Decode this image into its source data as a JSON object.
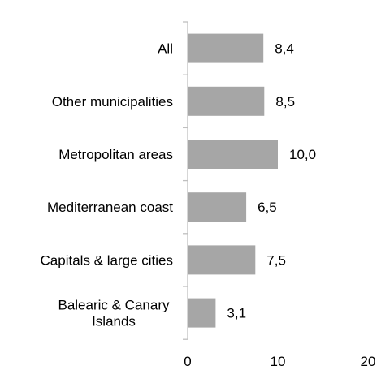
{
  "chart_data": {
    "type": "bar",
    "orientation": "horizontal",
    "categories": [
      [
        "All"
      ],
      [
        "Other municipalities"
      ],
      [
        "Metropolitan areas"
      ],
      [
        "Mediterranean coast"
      ],
      [
        "Capitals & large cities"
      ],
      [
        "Balearic & Canary",
        "Islands"
      ]
    ],
    "values": [
      8.4,
      8.5,
      10.0,
      6.5,
      7.5,
      3.1
    ],
    "value_labels": [
      "8,4",
      "8,5",
      "10,0",
      "6,5",
      "7,5",
      "3,1"
    ],
    "xlim": [
      0,
      20
    ],
    "xticks": [
      0,
      10,
      20
    ],
    "xtick_labels": [
      "0",
      "10",
      "20"
    ],
    "bar_color": "#a6a6a6",
    "axis_color": "#bfbfbf",
    "grid": false,
    "legend": "none"
  }
}
